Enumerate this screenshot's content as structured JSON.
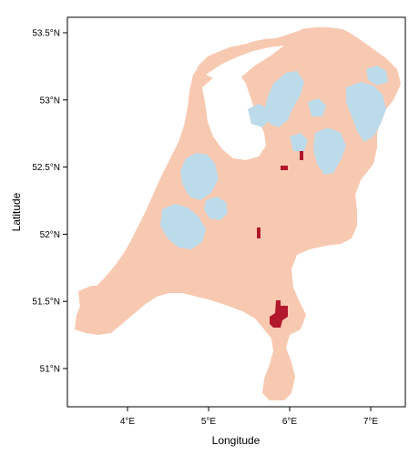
{
  "map": {
    "colors": {
      "land": "#f8c9b1",
      "water": "#bcdbea",
      "hotspot": "#b2182b",
      "frame": "#000000",
      "background": "#ffffff"
    },
    "x_axis": {
      "label": "Longitude",
      "ticks": [
        {
          "value": 4,
          "label": "4°E"
        },
        {
          "value": 5,
          "label": "5°E"
        },
        {
          "value": 6,
          "label": "6°E"
        },
        {
          "value": 7,
          "label": "7°E"
        }
      ],
      "range": [
        3.3,
        7.45
      ]
    },
    "y_axis": {
      "label": "Latitude",
      "ticks": [
        {
          "value": 51.0,
          "label": "51°N"
        },
        {
          "value": 51.5,
          "label": "51.5°N"
        },
        {
          "value": 52.0,
          "label": "52°N"
        },
        {
          "value": 52.5,
          "label": "52.5°N"
        },
        {
          "value": 53.0,
          "label": "53°N"
        },
        {
          "value": 53.5,
          "label": "53.5°N"
        }
      ],
      "range": [
        50.72,
        53.65
      ]
    }
  }
}
